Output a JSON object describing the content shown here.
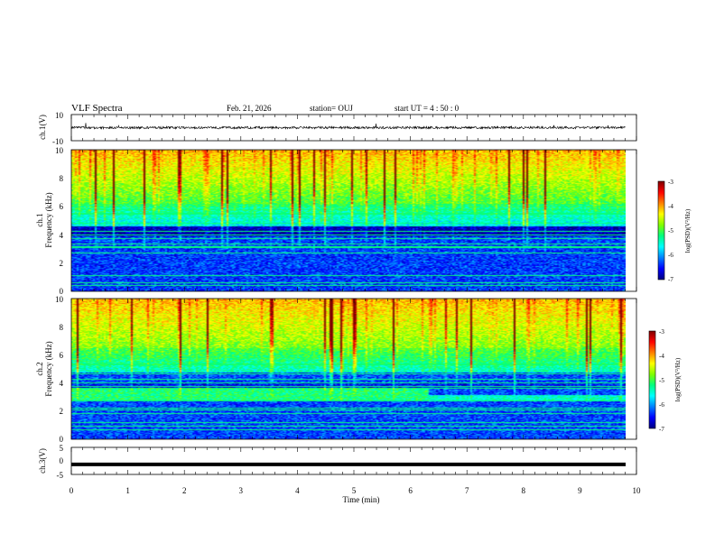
{
  "header": {
    "title": "VLF Spectra",
    "date": "Feb. 21, 2026",
    "station": "station= OUJ",
    "start": "start  UT =   4 : 50 : 0"
  },
  "colors": {
    "colormap": [
      "#00007f",
      "#0000ff",
      "#0080ff",
      "#00ffff",
      "#00ff80",
      "#80ff00",
      "#ffff00",
      "#ff8000",
      "#ff0000",
      "#7f0000"
    ],
    "waveform": "#000000",
    "axis": "#000000"
  },
  "chart_data": [
    {
      "type": "line",
      "name": "ch1-waveform",
      "ylabel": "ch.1(V)",
      "ylim": [
        -10,
        10
      ],
      "yticks": [
        "10",
        "-10"
      ],
      "xlim": [
        0,
        10
      ],
      "baseline": 0,
      "noise_amplitude_v": 1.5
    },
    {
      "type": "heatmap",
      "name": "ch1-spectrogram",
      "ylabel_1": "ch.1",
      "ylabel_2": "Frequency  (kHz)",
      "ylim": [
        0,
        10
      ],
      "yticks": [
        "0",
        "2",
        "4",
        "6",
        "8",
        "10"
      ],
      "xlim": [
        0,
        9.8
      ],
      "colorbar": {
        "label": "log(PSD)(V²/Hz)",
        "range": [
          -7,
          -3
        ],
        "ticks": [
          "-3",
          "-4",
          "-5",
          "-6",
          "-7"
        ]
      }
    },
    {
      "type": "heatmap",
      "name": "ch2-spectrogram",
      "ylabel_1": "ch.2",
      "ylabel_2": "Frequency  (kHz)",
      "ylim": [
        0,
        10
      ],
      "yticks": [
        "0",
        "2",
        "4",
        "6",
        "8",
        "10"
      ],
      "xlim": [
        0,
        9.8
      ],
      "band_shift_time_min": 6.3,
      "colorbar": {
        "label": "log(PSD)(V²/Hz)",
        "range": [
          -7,
          -3
        ],
        "ticks": [
          "-3",
          "-4",
          "-5",
          "-6",
          "-7"
        ]
      }
    },
    {
      "type": "line",
      "name": "ch3-waveform",
      "ylabel": "ch.3(V)",
      "ylim": [
        -5,
        5
      ],
      "yticks": [
        "5",
        "0",
        "-5"
      ],
      "xlim": [
        0,
        10
      ],
      "baseline": -1.3
    }
  ],
  "xaxis": {
    "label": "Time  (min)",
    "ticks": [
      "0",
      "1",
      "2",
      "3",
      "4",
      "5",
      "6",
      "7",
      "8",
      "9",
      "10"
    ]
  }
}
